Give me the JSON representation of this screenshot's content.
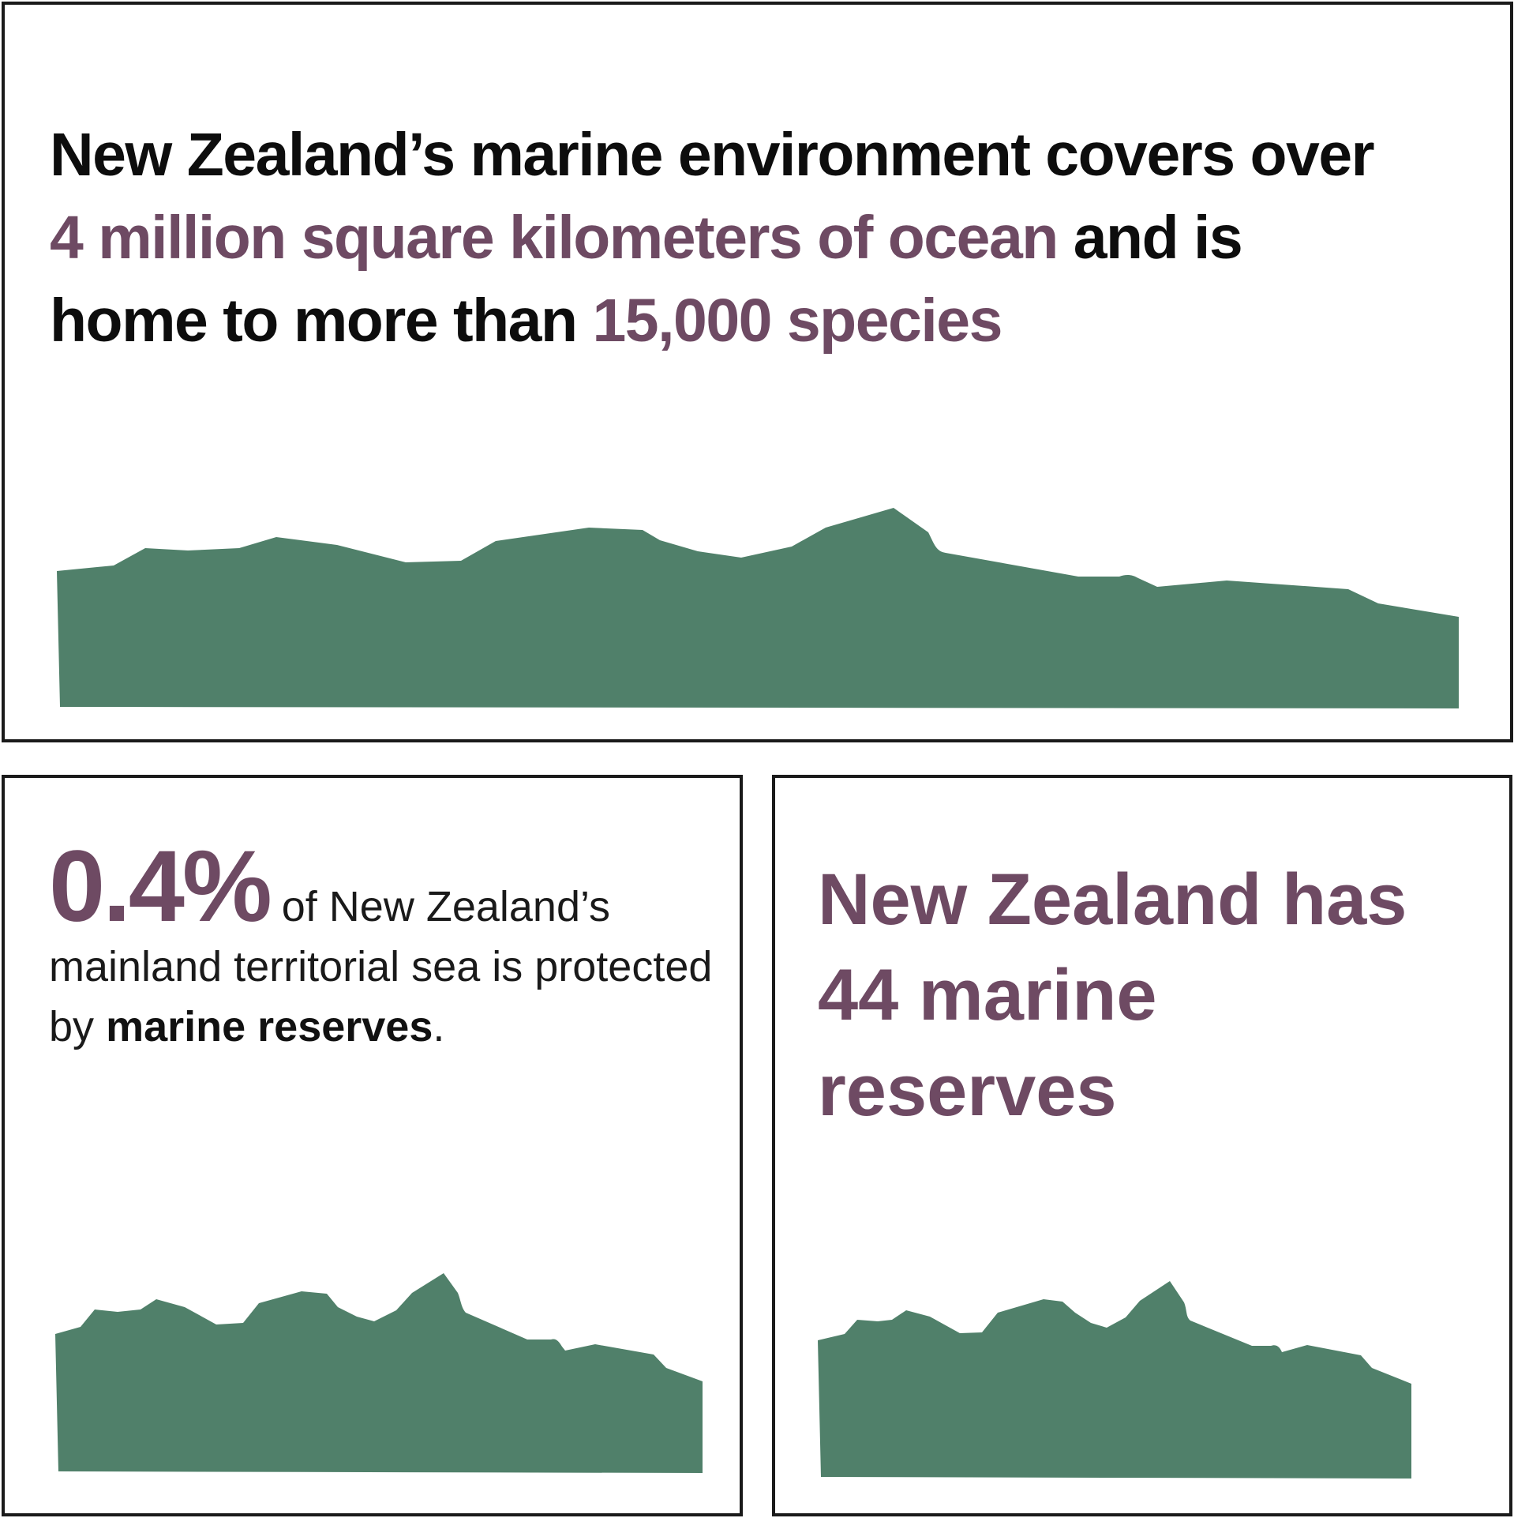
{
  "colors": {
    "accent": "#6e4a63",
    "land": "#50806a",
    "border": "#1a1a1a"
  },
  "top_panel": {
    "part1": "New Zealand’s marine environment covers over",
    "part2": "4 million square kilometers of ocean",
    "part3": "and is",
    "part4": "home to more than",
    "part5": "15,000 species"
  },
  "left_panel": {
    "percent": "0.4%",
    "text1": "of New Zealand’s mainland territorial sea is protected by",
    "bold": "marine reserves",
    "end": "."
  },
  "right_panel": {
    "line1": "New Zealand has",
    "line2": "44 marine",
    "line3": "reserves"
  }
}
